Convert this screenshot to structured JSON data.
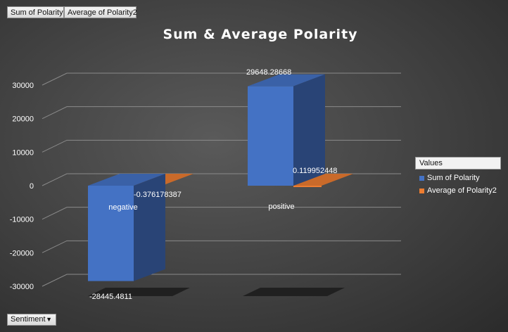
{
  "pivot_fields": {
    "values": [
      "Sum of Polarity",
      "Average of Polarity2"
    ],
    "row_field": "Sentiment"
  },
  "colors": {
    "sum": "#4472c4",
    "average": "#ed7d31"
  },
  "legend": {
    "title": "Values"
  },
  "chart_data": {
    "type": "bar",
    "style": "3d-clustered-column",
    "title": "Sum & Average Polarity",
    "categories": [
      "negative",
      "positive"
    ],
    "series": [
      {
        "name": "Sum of Polarity",
        "values": [
          -28445.4811,
          29648.28668
        ]
      },
      {
        "name": "Average of Polarity2",
        "values": [
          -0.376178387,
          0.119952448
        ]
      }
    ],
    "data_labels": [
      [
        "-28445.4811",
        "29648.28668"
      ],
      [
        "-0.376178387",
        "0.119952448"
      ]
    ],
    "ylim": [
      -30000,
      30000
    ],
    "yticks": [
      30000,
      20000,
      10000,
      0,
      -10000,
      -20000,
      -30000
    ],
    "grid": true,
    "legend_position": "right"
  }
}
